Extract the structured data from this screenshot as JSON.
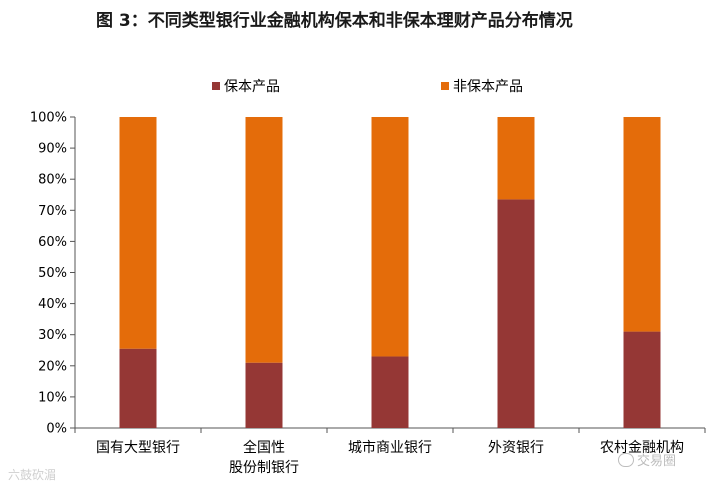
{
  "title": "图 3：不同类型银行业金融机构保本和非保本理财产品分布情况",
  "watermark_left": "六鼓砍湄",
  "watermark_right": "交易圈",
  "colors": {
    "guaranteed": "#953735",
    "non_guaranteed": "#E46C0A",
    "axis": "#555555"
  },
  "chart_data": {
    "type": "bar",
    "stacked": true,
    "categories": [
      "国有大型银行",
      "全国性\n股份制银行",
      "城市商业银行",
      "外资银行",
      "农村金融机构"
    ],
    "series": [
      {
        "name": "保本产品",
        "values": [
          25.5,
          21,
          23,
          73.5,
          31
        ]
      },
      {
        "name": "非保本产品",
        "values": [
          74.5,
          79,
          77,
          26.5,
          69
        ]
      }
    ],
    "ylim": [
      0,
      100
    ],
    "yticks": [
      "0%",
      "10%",
      "20%",
      "30%",
      "40%",
      "50%",
      "60%",
      "70%",
      "80%",
      "90%",
      "100%"
    ],
    "grid": false,
    "legend_position": "top"
  }
}
